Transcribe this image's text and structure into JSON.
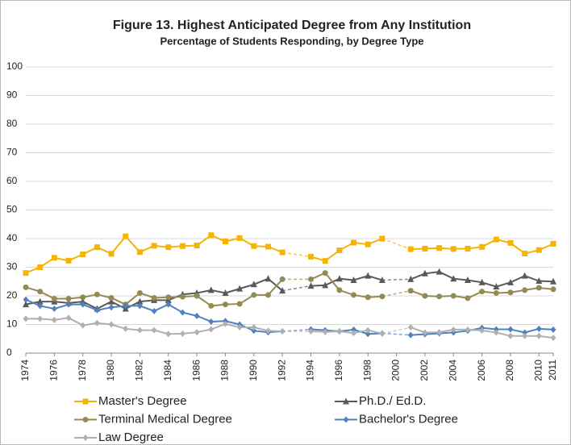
{
  "chart_data": {
    "type": "line",
    "title": "Figure 13.  Highest Anticipated Degree from Any Institution",
    "subtitle": "Percentage of Students Responding, by Degree Type",
    "x": [
      1974,
      1975,
      1976,
      1977,
      1978,
      1979,
      1980,
      1981,
      1982,
      1983,
      1984,
      1985,
      1986,
      1987,
      1988,
      1989,
      1990,
      1991,
      1992,
      1993,
      1994,
      1995,
      1996,
      1997,
      1998,
      1999,
      2000,
      2001,
      2002,
      2003,
      2004,
      2005,
      2006,
      2007,
      2008,
      2009,
      2010,
      2011
    ],
    "xlim": [
      1974,
      2011
    ],
    "xticks": [
      1974,
      1976,
      1978,
      1980,
      1982,
      1984,
      1986,
      1988,
      1990,
      1992,
      1994,
      1996,
      1998,
      2000,
      2002,
      2004,
      2006,
      2008,
      2010,
      2011
    ],
    "ylim": [
      0,
      100
    ],
    "yticks": [
      0,
      10,
      20,
      30,
      40,
      50,
      60,
      70,
      80,
      90,
      100
    ],
    "grid": true,
    "series": [
      {
        "name": "Master's Degree",
        "color": "#f5b400",
        "marker": "square",
        "values": [
          28,
          30,
          33.3,
          32.3,
          34.5,
          37,
          34.7,
          40.8,
          35.3,
          37.5,
          37,
          37.4,
          37.6,
          41.2,
          39,
          40.2,
          37.4,
          37.2,
          35.2,
          null,
          33.7,
          32.2,
          35.9,
          38.6,
          38,
          40,
          null,
          36.3,
          36.5,
          36.7,
          36.4,
          36.5,
          37.1,
          39.7,
          38.5,
          34.8,
          36,
          38.2
        ]
      },
      {
        "name": "Ph.D./ Ed.D.",
        "color": "#595959",
        "marker": "triangle",
        "values": [
          17,
          18,
          18,
          17.5,
          18,
          15.5,
          18,
          15.5,
          18,
          18.5,
          18.5,
          20.5,
          21,
          22,
          21,
          22.5,
          24,
          26,
          21.8,
          null,
          23.5,
          23.7,
          26,
          25.5,
          27,
          25.5,
          null,
          25.8,
          27.8,
          28.4,
          26,
          25.5,
          24.7,
          23.2,
          24.7,
          27,
          25.2,
          25
        ]
      },
      {
        "name": "Terminal Medical Degree",
        "color": "#948a54",
        "marker": "circle",
        "values": [
          23,
          21.5,
          19,
          19,
          19.5,
          20.5,
          19.3,
          17,
          21,
          19.3,
          19.5,
          19.7,
          20,
          16.5,
          17,
          17.2,
          20.3,
          20.3,
          25.8,
          null,
          25.8,
          28,
          22,
          20.3,
          19.5,
          19.8,
          null,
          21.8,
          20,
          19.8,
          20,
          19.2,
          21.5,
          21,
          21.2,
          22,
          22.8,
          22.3
        ]
      },
      {
        "name": "Bachelor's Degree",
        "color": "#4f81bd",
        "marker": "diamond",
        "values": [
          18.7,
          16.5,
          15.5,
          17,
          17,
          15,
          16,
          16.5,
          16.5,
          14.7,
          17,
          14.2,
          13,
          11,
          11.2,
          10,
          7.8,
          7.3,
          7.6,
          null,
          8.3,
          8,
          7.6,
          8.2,
          6.7,
          6.9,
          null,
          6.3,
          6.6,
          6.9,
          7.2,
          7.8,
          8.8,
          8.3,
          8.3,
          7.2,
          8.5,
          8.2
        ]
      },
      {
        "name": "Law Degree",
        "color": "#b0b0b0",
        "marker": "diamond",
        "values": [
          12,
          12,
          11.6,
          12.3,
          9.7,
          10.5,
          10,
          8.5,
          8,
          8,
          6.7,
          6.8,
          7.3,
          8.3,
          10.2,
          9,
          9,
          7.8,
          7.6,
          null,
          7.6,
          7.4,
          7.6,
          7,
          8,
          6.8,
          null,
          9,
          7.2,
          7.3,
          8.2,
          8.2,
          7.9,
          7.2,
          6,
          6,
          6,
          5.3
        ]
      }
    ]
  }
}
